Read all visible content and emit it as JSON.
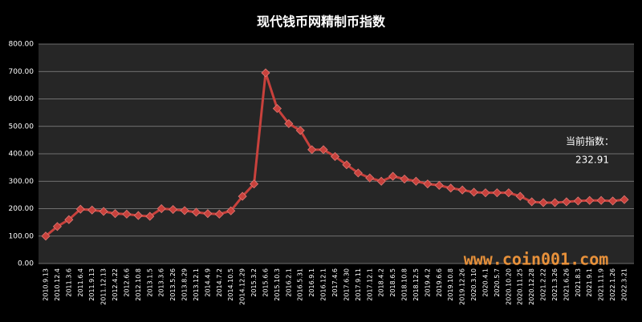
{
  "chart_data": {
    "type": "line",
    "title": "现代钱币网精制币指数",
    "categories": [
      "2010.9.13",
      "2010.12.4",
      "2011.3.6",
      "2011.6.4",
      "2011.9.13",
      "2011.12.13",
      "2012.4.22",
      "2012.6.6",
      "2012.10.8",
      "2013.1.5",
      "2013.3.6",
      "2013.5.26",
      "2013.8.29",
      "2013.12.1",
      "2014.4.9",
      "2014.7.2",
      "2014.10.5",
      "2014.12.29",
      "2015.3.2",
      "2015.6.6",
      "2015.10.3",
      "2016.2.1",
      "2016.5.31",
      "2016.9.1",
      "2016.12.1",
      "2017.4.6",
      "2017.6.30",
      "2017.9.11",
      "2017.12.1",
      "2018.4.2",
      "2018.6.5",
      "2018.10.8",
      "2018.12.5",
      "2019.4.2",
      "2019.6.6",
      "2019.10.8",
      "2019.12.26",
      "2020.3.10",
      "2020.4.1",
      "2020.5.7",
      "2020.10.20",
      "2020.11.25",
      "2020.12.28",
      "2021.2.22",
      "2021.3.26",
      "2021.6.26",
      "2021.8.3",
      "2021.9.1",
      "2021.11.9",
      "2022.1.26",
      "2022.3.21"
    ],
    "series": [
      {
        "name": "现代钱币网精制币指数",
        "color": "#c8413c",
        "values": [
          100,
          135,
          160,
          198,
          195,
          190,
          182,
          180,
          175,
          172,
          200,
          197,
          193,
          187,
          182,
          180,
          192,
          245,
          290,
          695,
          565,
          510,
          485,
          415,
          415,
          390,
          360,
          330,
          312,
          300,
          318,
          308,
          300,
          290,
          285,
          275,
          268,
          260,
          258,
          258,
          258,
          245,
          225,
          222,
          222,
          225,
          228,
          230,
          230,
          228,
          232.91
        ]
      }
    ],
    "ylim": [
      0,
      800
    ],
    "yticks": [
      {
        "value": 0,
        "label": "0.00"
      },
      {
        "value": 100,
        "label": "100.00"
      },
      {
        "value": 200,
        "label": "200.00"
      },
      {
        "value": 300,
        "label": "300.00"
      },
      {
        "value": 400,
        "label": "400.00"
      },
      {
        "value": 500,
        "label": "500.00"
      },
      {
        "value": 600,
        "label": "600.00"
      },
      {
        "value": 700,
        "label": "700.00"
      },
      {
        "value": 800,
        "label": "800.00"
      }
    ],
    "grid": true,
    "annotations": [
      "当前指数：",
      "232.91"
    ],
    "watermark": "www.coin001.com"
  }
}
